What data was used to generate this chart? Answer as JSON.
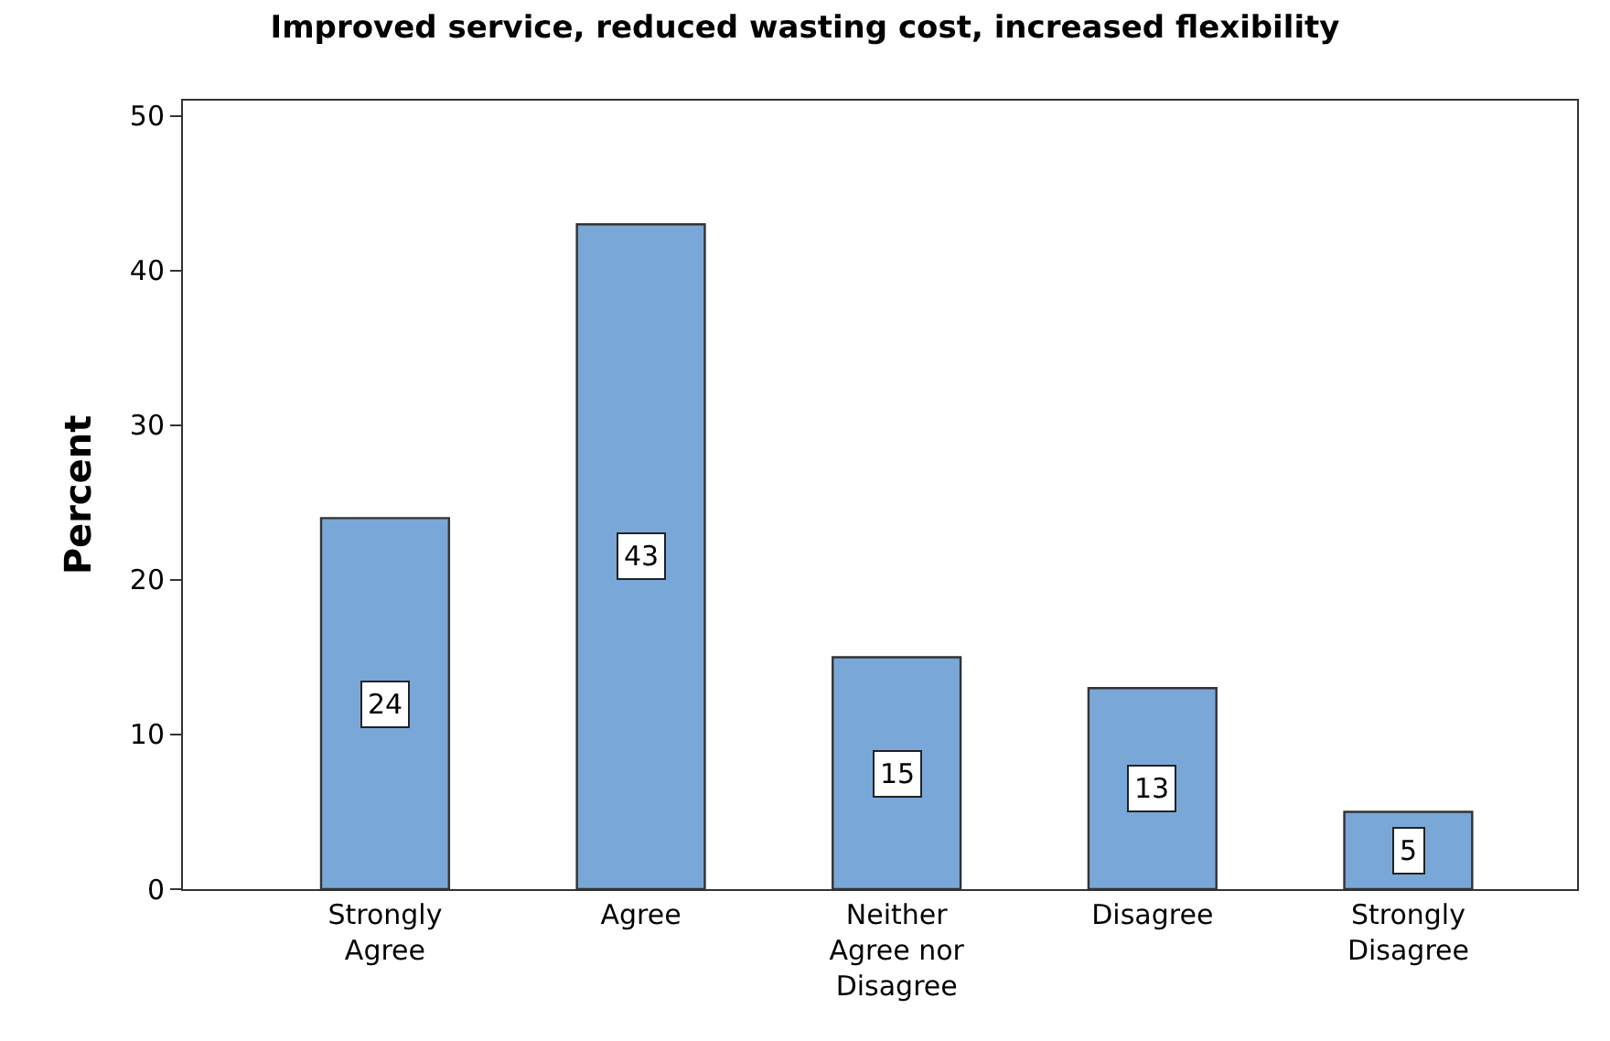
{
  "chart_data": {
    "type": "bar",
    "title": "Improved service, reduced wasting cost, increased flexibility",
    "ylabel": "Percent",
    "categories": [
      "Strongly Agree",
      "Agree",
      "Neither Agree nor Disagree",
      "Disagree",
      "Strongly Disagree"
    ],
    "values": [
      24,
      43,
      15,
      13,
      5
    ],
    "color": "#79a7d8",
    "data_labels": true,
    "ylim": [
      0,
      51
    ],
    "yticks": [
      0,
      10,
      20,
      30,
      40,
      50
    ]
  }
}
